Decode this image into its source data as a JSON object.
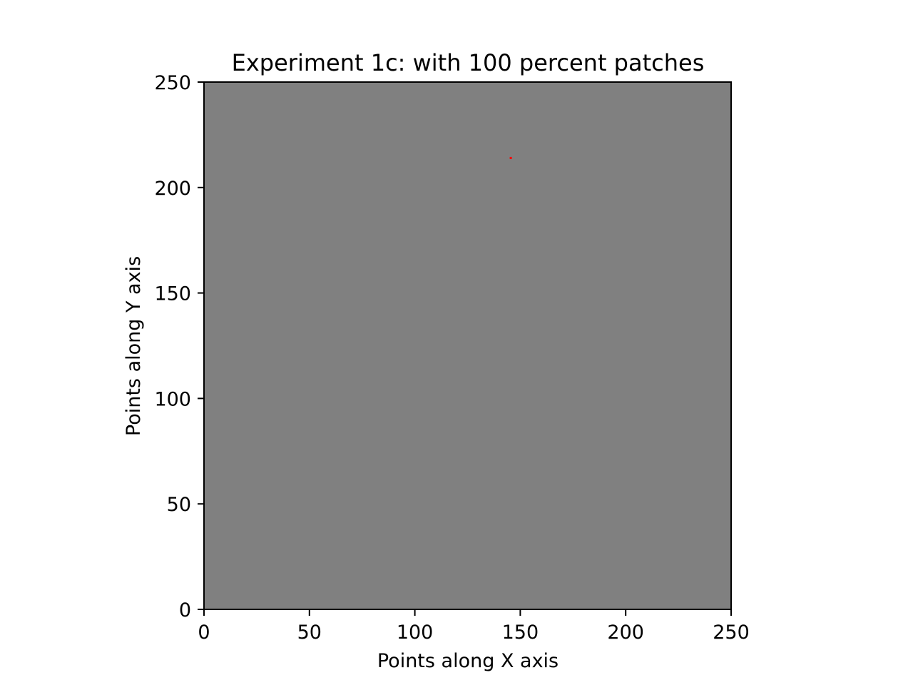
{
  "chart_data": {
    "type": "scatter",
    "title": "Experiment 1c: with 100 percent patches",
    "xlabel": "Points along X axis",
    "ylabel": "Points along Y axis",
    "xlim": [
      0,
      250
    ],
    "ylim": [
      0,
      250
    ],
    "xticks": [
      0,
      50,
      100,
      150,
      200,
      250
    ],
    "yticks": [
      0,
      50,
      100,
      150,
      200,
      250
    ],
    "xtick_labels": [
      "0",
      "50",
      "100",
      "150",
      "200",
      "250"
    ],
    "ytick_labels": [
      "0",
      "50",
      "100",
      "150",
      "200",
      "250"
    ],
    "grid": false,
    "background_color": "#808080",
    "series": [
      {
        "color": "#ff0000",
        "points": [
          {
            "x": 145.5,
            "y": 214
          }
        ]
      }
    ]
  }
}
